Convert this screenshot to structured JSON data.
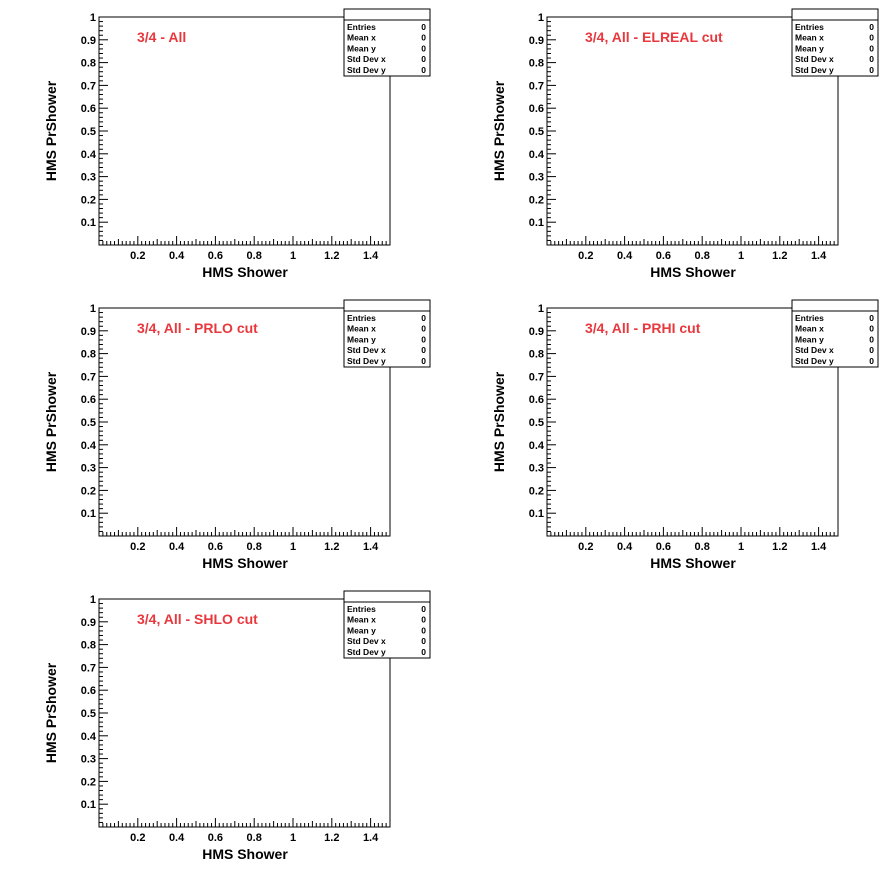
{
  "chart_data": [
    {
      "type": "scatter",
      "title": "3/4 - All",
      "xlabel": "HMS Shower",
      "ylabel": "HMS PrShower",
      "xlim": [
        0,
        1.5
      ],
      "ylim": [
        0,
        1
      ],
      "x_ticks": [
        "0.2",
        "0.4",
        "0.6",
        "0.8",
        "1",
        "1.2",
        "1.4"
      ],
      "y_ticks": [
        "0.1",
        "0.2",
        "0.3",
        "0.4",
        "0.5",
        "0.6",
        "0.7",
        "0.8",
        "0.9",
        "1"
      ],
      "points": [],
      "stats": [
        {
          "label": "Entries",
          "value": "0"
        },
        {
          "label": "Mean x",
          "value": "0"
        },
        {
          "label": "Mean y",
          "value": "0"
        },
        {
          "label": "Std Dev x",
          "value": "0"
        },
        {
          "label": "Std Dev y",
          "value": "0"
        }
      ]
    },
    {
      "type": "scatter",
      "title": "3/4, All - ELREAL cut",
      "xlabel": "HMS Shower",
      "ylabel": "HMS PrShower",
      "xlim": [
        0,
        1.5
      ],
      "ylim": [
        0,
        1
      ],
      "x_ticks": [
        "0.2",
        "0.4",
        "0.6",
        "0.8",
        "1",
        "1.2",
        "1.4"
      ],
      "y_ticks": [
        "0.1",
        "0.2",
        "0.3",
        "0.4",
        "0.5",
        "0.6",
        "0.7",
        "0.8",
        "0.9",
        "1"
      ],
      "points": [],
      "stats": [
        {
          "label": "Entries",
          "value": "0"
        },
        {
          "label": "Mean x",
          "value": "0"
        },
        {
          "label": "Mean y",
          "value": "0"
        },
        {
          "label": "Std Dev x",
          "value": "0"
        },
        {
          "label": "Std Dev y",
          "value": "0"
        }
      ]
    },
    {
      "type": "scatter",
      "title": "3/4, All - PRLO cut",
      "xlabel": "HMS Shower",
      "ylabel": "HMS PrShower",
      "xlim": [
        0,
        1.5
      ],
      "ylim": [
        0,
        1
      ],
      "x_ticks": [
        "0.2",
        "0.4",
        "0.6",
        "0.8",
        "1",
        "1.2",
        "1.4"
      ],
      "y_ticks": [
        "0.1",
        "0.2",
        "0.3",
        "0.4",
        "0.5",
        "0.6",
        "0.7",
        "0.8",
        "0.9",
        "1"
      ],
      "points": [],
      "stats": [
        {
          "label": "Entries",
          "value": "0"
        },
        {
          "label": "Mean x",
          "value": "0"
        },
        {
          "label": "Mean y",
          "value": "0"
        },
        {
          "label": "Std Dev x",
          "value": "0"
        },
        {
          "label": "Std Dev y",
          "value": "0"
        }
      ]
    },
    {
      "type": "scatter",
      "title": "3/4, All - PRHI cut",
      "xlabel": "HMS Shower",
      "ylabel": "HMS PrShower",
      "xlim": [
        0,
        1.5
      ],
      "ylim": [
        0,
        1
      ],
      "x_ticks": [
        "0.2",
        "0.4",
        "0.6",
        "0.8",
        "1",
        "1.2",
        "1.4"
      ],
      "y_ticks": [
        "0.1",
        "0.2",
        "0.3",
        "0.4",
        "0.5",
        "0.6",
        "0.7",
        "0.8",
        "0.9",
        "1"
      ],
      "points": [],
      "stats": [
        {
          "label": "Entries",
          "value": "0"
        },
        {
          "label": "Mean x",
          "value": "0"
        },
        {
          "label": "Mean y",
          "value": "0"
        },
        {
          "label": "Std Dev x",
          "value": "0"
        },
        {
          "label": "Std Dev y",
          "value": "0"
        }
      ]
    },
    {
      "type": "scatter",
      "title": "3/4, All - SHLO cut",
      "xlabel": "HMS Shower",
      "ylabel": "HMS PrShower",
      "xlim": [
        0,
        1.5
      ],
      "ylim": [
        0,
        1
      ],
      "x_ticks": [
        "0.2",
        "0.4",
        "0.6",
        "0.8",
        "1",
        "1.2",
        "1.4"
      ],
      "y_ticks": [
        "0.1",
        "0.2",
        "0.3",
        "0.4",
        "0.5",
        "0.6",
        "0.7",
        "0.8",
        "0.9",
        "1"
      ],
      "points": [],
      "stats": [
        {
          "label": "Entries",
          "value": "0"
        },
        {
          "label": "Mean x",
          "value": "0"
        },
        {
          "label": "Mean y",
          "value": "0"
        },
        {
          "label": "Std Dev x",
          "value": "0"
        },
        {
          "label": "Std Dev y",
          "value": "0"
        }
      ]
    }
  ],
  "colors": {
    "title": "#e8383d",
    "axis": "#000000",
    "background": "#ffffff"
  }
}
